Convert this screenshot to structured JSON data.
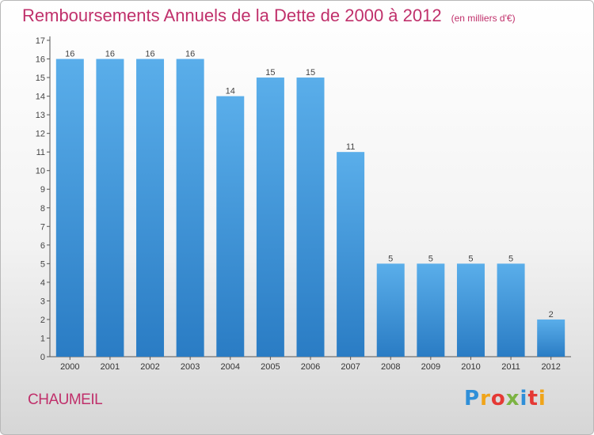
{
  "title": {
    "main": "Remboursements Annuels de la Dette de 2000 à 2012",
    "unit": "(en milliers d'€)"
  },
  "commune": "CHAUMEIL",
  "brand": {
    "letters": [
      "P",
      "r",
      "o",
      "x",
      "i",
      "t",
      "i"
    ],
    "colors": [
      "#2f8fd8",
      "#f0a419",
      "#e53935",
      "#7cb342",
      "#2f8fd8",
      "#e53935",
      "#f0a419"
    ]
  },
  "colors": {
    "title": "#c0306b",
    "bar_top": "#5aaeea",
    "bar_bottom": "#2a7cc4",
    "axis": "#555555"
  },
  "chart_data": {
    "type": "bar",
    "categories": [
      "2000",
      "2001",
      "2002",
      "2003",
      "2004",
      "2005",
      "2006",
      "2007",
      "2008",
      "2009",
      "2010",
      "2011",
      "2012"
    ],
    "values": [
      16,
      16,
      16,
      16,
      14,
      15,
      15,
      11,
      5,
      5,
      5,
      5,
      2
    ],
    "data_labels": [
      "16",
      "16",
      "16",
      "16",
      "14",
      "15",
      "15",
      "11",
      "5",
      "5",
      "5",
      "5",
      "2"
    ],
    "y_ticks": [
      0,
      1,
      2,
      3,
      4,
      5,
      6,
      7,
      8,
      9,
      10,
      11,
      12,
      13,
      14,
      15,
      16,
      17
    ],
    "ylim": [
      0,
      17
    ],
    "grid": false
  }
}
